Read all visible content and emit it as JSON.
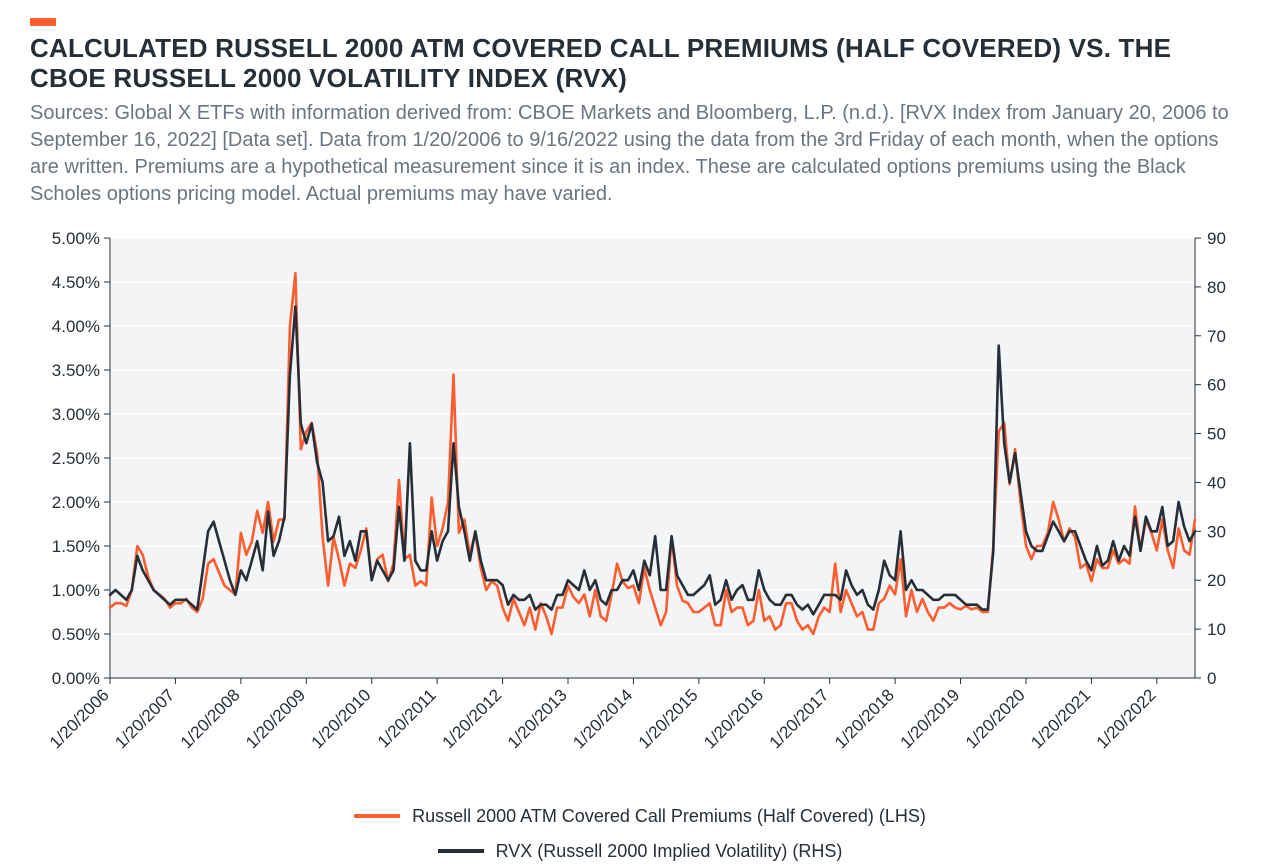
{
  "accent_color": "#ff5d2f",
  "title": {
    "text": "CALCULATED RUSSELL 2000 ATM COVERED CALL PREMIUMS (HALF COVERED) VS. THE CBOE RUSSELL 2000 VOLATILITY INDEX (RVX)",
    "color": "#262f38",
    "fontsize": 26
  },
  "subtitle": {
    "text": "Sources: Global X ETFs with information derived from: CBOE Markets and Bloomberg, L.P. (n.d.). [RVX Index from January 20, 2006 to September 16, 2022] [Data set]. Data from 1/20/2006 to 9/16/2022 using the data from the 3rd Friday of each month, when the options are written. Premiums are a hypothetical measurement since it is an index. These are calculated options premiums using the Black Scholes options pricing model. Actual premiums may have varied.",
    "color": "#6a7580",
    "fontsize": 20
  },
  "chart": {
    "type": "line-dual-axis",
    "plot_bg": "#f3f4f6",
    "grid_color": "#ffffff",
    "axis_color": "#262f38",
    "y_left": {
      "min": 0.0,
      "max": 5.0,
      "step": 0.5,
      "format": "percent2",
      "ticks": [
        "0.00%",
        "0.50%",
        "1.00%",
        "1.50%",
        "2.00%",
        "2.50%",
        "3.00%",
        "3.50%",
        "4.00%",
        "4.50%",
        "5.00%"
      ]
    },
    "y_right": {
      "min": 0,
      "max": 90,
      "step": 10,
      "ticks": [
        "0",
        "10",
        "20",
        "30",
        "40",
        "50",
        "60",
        "70",
        "80",
        "90"
      ]
    },
    "x": {
      "labels": [
        "1/20/2006",
        "1/20/2007",
        "1/20/2008",
        "1/20/2009",
        "1/20/2010",
        "1/20/2011",
        "1/20/2012",
        "1/20/2013",
        "1/20/2014",
        "1/20/2015",
        "1/20/2016",
        "1/20/2017",
        "1/20/2018",
        "1/20/2019",
        "1/20/2020",
        "1/20/2021",
        "1/20/2022"
      ],
      "n_points": 200
    },
    "series": [
      {
        "name": "Russell 2000 ATM Covered Call Premiums (Half Covered) (LHS)",
        "axis": "left",
        "color": "#ff5d2f",
        "width": 2.6,
        "values": [
          0.8,
          0.85,
          0.85,
          0.82,
          1.0,
          1.5,
          1.4,
          1.15,
          1.0,
          0.95,
          0.9,
          0.8,
          0.85,
          0.85,
          0.9,
          0.8,
          0.75,
          0.9,
          1.3,
          1.35,
          1.2,
          1.05,
          1.0,
          0.95,
          1.65,
          1.4,
          1.55,
          1.9,
          1.65,
          2.0,
          1.55,
          1.8,
          1.8,
          4.0,
          4.6,
          2.6,
          2.8,
          2.9,
          2.55,
          1.6,
          1.05,
          1.6,
          1.35,
          1.05,
          1.3,
          1.25,
          1.45,
          1.7,
          1.12,
          1.35,
          1.4,
          1.1,
          1.3,
          2.25,
          1.35,
          1.4,
          1.05,
          1.1,
          1.05,
          2.05,
          1.5,
          1.7,
          2.0,
          3.45,
          1.65,
          1.8,
          1.4,
          1.65,
          1.25,
          1.0,
          1.1,
          1.05,
          0.8,
          0.65,
          0.9,
          0.75,
          0.6,
          0.8,
          0.55,
          0.85,
          0.7,
          0.5,
          0.8,
          0.8,
          1.05,
          0.92,
          0.85,
          0.95,
          0.7,
          1.0,
          0.7,
          0.65,
          0.95,
          1.3,
          1.1,
          1.02,
          1.05,
          0.85,
          1.25,
          1.0,
          0.8,
          0.6,
          0.75,
          1.6,
          1.05,
          0.88,
          0.85,
          0.75,
          0.75,
          0.8,
          0.85,
          0.6,
          0.6,
          1.0,
          0.75,
          0.8,
          0.8,
          0.6,
          0.65,
          1.0,
          0.65,
          0.7,
          0.55,
          0.6,
          0.85,
          0.85,
          0.65,
          0.55,
          0.6,
          0.5,
          0.7,
          0.8,
          0.75,
          1.3,
          0.75,
          1.0,
          0.85,
          0.7,
          0.75,
          0.55,
          0.55,
          0.85,
          0.9,
          1.05,
          0.95,
          1.35,
          0.7,
          1.0,
          0.75,
          0.9,
          0.75,
          0.65,
          0.8,
          0.8,
          0.85,
          0.8,
          0.78,
          0.82,
          0.78,
          0.8,
          0.75,
          0.75,
          1.5,
          2.8,
          2.9,
          2.2,
          2.6,
          2.0,
          1.5,
          1.35,
          1.5,
          1.5,
          1.65,
          2.0,
          1.8,
          1.55,
          1.7,
          1.6,
          1.25,
          1.3,
          1.1,
          1.35,
          1.25,
          1.25,
          1.45,
          1.3,
          1.35,
          1.3,
          1.95,
          1.45,
          1.8,
          1.65,
          1.45,
          1.8,
          1.45,
          1.25,
          1.7,
          1.45,
          1.4,
          1.8
        ]
      },
      {
        "name": "RVX (Russell 2000 Implied Volatility) (RHS)",
        "axis": "right",
        "color": "#262f38",
        "width": 2.6,
        "values": [
          17,
          18,
          17,
          16,
          18,
          25,
          22,
          20,
          18,
          17,
          16,
          15,
          16,
          16,
          16,
          15,
          14,
          22,
          30,
          32,
          28,
          24,
          20,
          17,
          22,
          20,
          24,
          28,
          22,
          34,
          25,
          28,
          33,
          62,
          76,
          52,
          48,
          52,
          44,
          40,
          28,
          29,
          33,
          25,
          28,
          24,
          30,
          30,
          20,
          24,
          22,
          20,
          22,
          35,
          24,
          48,
          24,
          22,
          22,
          30,
          24,
          28,
          30,
          48,
          35,
          30,
          24,
          30,
          24,
          20,
          20,
          20,
          19,
          15,
          17,
          16,
          16,
          17,
          14,
          15,
          15,
          14,
          17,
          17,
          20,
          19,
          18,
          22,
          18,
          20,
          16,
          15,
          18,
          18,
          20,
          20,
          22,
          18,
          24,
          21,
          29,
          18,
          18,
          29,
          21,
          19,
          17,
          17,
          18,
          19,
          21,
          15,
          16,
          20,
          16,
          18,
          19,
          16,
          16,
          22,
          18,
          16,
          15,
          15,
          17,
          17,
          15,
          14,
          15,
          13,
          15,
          17,
          17,
          17,
          16,
          22,
          19,
          17,
          18,
          15,
          14,
          18,
          24,
          21,
          20,
          30,
          18,
          20,
          18,
          18,
          17,
          16,
          16,
          17,
          17,
          17,
          16,
          15,
          15,
          15,
          14,
          14,
          26,
          68,
          48,
          40,
          46,
          38,
          30,
          27,
          26,
          26,
          29,
          32,
          30,
          28,
          30,
          30,
          27,
          24,
          22,
          27,
          23,
          24,
          28,
          24,
          27,
          25,
          33,
          26,
          33,
          30,
          30,
          35,
          27,
          28,
          36,
          31,
          28,
          30
        ]
      }
    ],
    "legend": [
      {
        "label": "Russell 2000 ATM Covered Call Premiums (Half Covered) (LHS)",
        "color": "#ff5d2f"
      },
      {
        "label": "RVX (Russell 2000 Implied Volatility) (RHS)",
        "color": "#262f38"
      }
    ]
  }
}
